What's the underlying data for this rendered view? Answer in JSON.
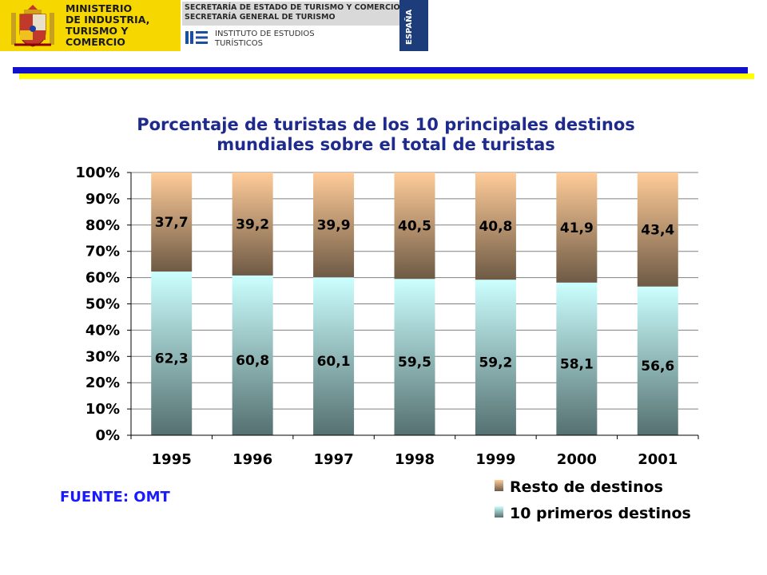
{
  "header": {
    "ministry_lines": [
      "MINISTERIO",
      "DE INDUSTRIA,",
      "TURISMO Y",
      "COMERCIO"
    ],
    "secretaria_lines": [
      "SECRETARÍA DE ESTADO DE TURISMO Y COMERCIO",
      "SECRETARÍA GENERAL DE TURISMO"
    ],
    "institute_lines": [
      "INSTITUTO DE ESTUDIOS",
      "TURÍSTICOS"
    ],
    "country_label": "ESPAÑA"
  },
  "source_note": "FUENTE: OMT",
  "colors": {
    "blue_bar": "#1111cc",
    "yellow_bar": "#ffff00",
    "title": "#1e2a8c",
    "source": "#1a1aff"
  },
  "chart_data": {
    "type": "bar",
    "stacked": true,
    "percent": true,
    "title_lines": [
      "Porcentaje de turistas de los 10 principales destinos",
      "mundiales sobre el total de turistas"
    ],
    "categories": [
      "1995",
      "1996",
      "1997",
      "1998",
      "1999",
      "2000",
      "2001"
    ],
    "series": [
      {
        "name": "10 primeros destinos",
        "values": [
          62.3,
          60.8,
          60.1,
          59.5,
          59.2,
          58.1,
          56.6
        ],
        "labels": [
          "62,3",
          "60,8",
          "60,1",
          "59,5",
          "59,2",
          "58,1",
          "56,6"
        ],
        "color_top": "#ccffff",
        "color_bottom": "#557070"
      },
      {
        "name": "Resto de destinos",
        "values": [
          37.7,
          39.2,
          39.9,
          40.5,
          40.8,
          41.9,
          43.4
        ],
        "labels": [
          "37,7",
          "39,2",
          "39,9",
          "40,5",
          "40,8",
          "41,9",
          "43,4"
        ],
        "color_top": "#ffcc99",
        "color_bottom": "#6e5a45"
      }
    ],
    "y_ticks": [
      "0%",
      "10%",
      "20%",
      "30%",
      "40%",
      "50%",
      "60%",
      "70%",
      "80%",
      "90%",
      "100%"
    ],
    "ylim": [
      0,
      100
    ],
    "grid": true,
    "legend_position": "bottom-right"
  }
}
